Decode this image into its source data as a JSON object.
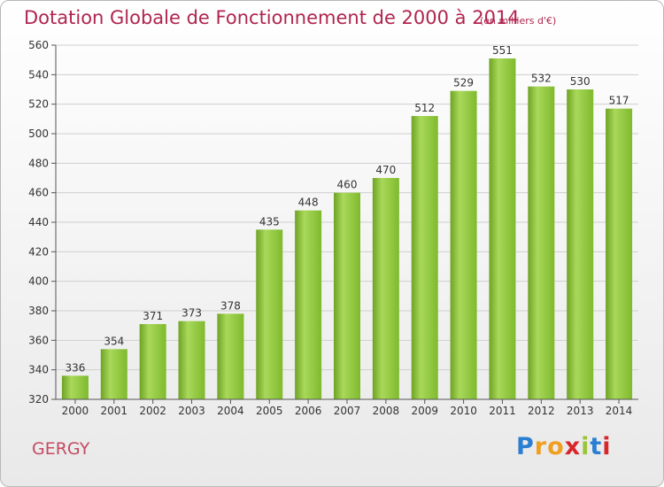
{
  "title": "Dotation Globale de Fonctionnement de 2000 à 2014",
  "subtitle": "(en milliers d'€)",
  "commune": "GERGY",
  "brand": {
    "letters": [
      "P",
      "r",
      "o",
      "x",
      "i",
      "t",
      "i"
    ],
    "colors": [
      "#2b7fd0",
      "#f0a020",
      "#f0a020",
      "#d8262a",
      "#9bc43a",
      "#2b7fd0",
      "#d8262a"
    ]
  },
  "chart_data": {
    "type": "bar",
    "categories": [
      "2000",
      "2001",
      "2002",
      "2003",
      "2004",
      "2005",
      "2006",
      "2007",
      "2008",
      "2009",
      "2010",
      "2011",
      "2012",
      "2013",
      "2014"
    ],
    "values": [
      336,
      354,
      371,
      373,
      378,
      435,
      448,
      460,
      470,
      512,
      529,
      551,
      532,
      530,
      517
    ],
    "ylim": [
      320,
      560
    ],
    "yticks": [
      320,
      340,
      360,
      380,
      400,
      420,
      440,
      460,
      480,
      500,
      520,
      540,
      560
    ],
    "grid": true,
    "colors": {
      "bar": "#7fba2e",
      "bar_light": "#a9d85a",
      "bar_dark": "#6ea323",
      "grid": "#cfcfcf",
      "text": "#333333"
    }
  }
}
